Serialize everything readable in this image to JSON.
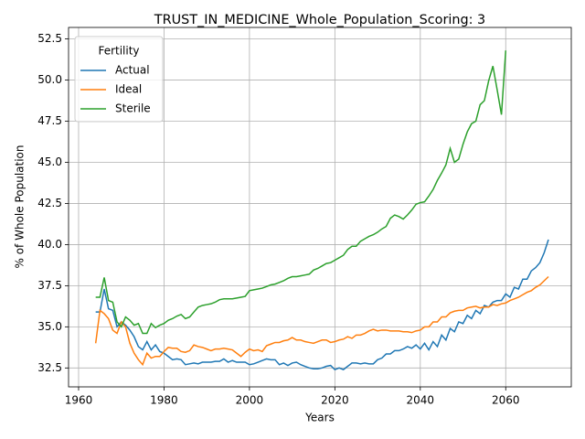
{
  "chart_data": {
    "type": "line",
    "title": "TRUST_IN_MEDICINE_Whole_Population_Scoring: 3",
    "x_label": "Years",
    "y_label": "% of Whole Population",
    "legend_title": "Fertility",
    "legend": "upper left",
    "grid": true,
    "x": [
      1964,
      1965,
      1966,
      1967,
      1968,
      1969,
      1970,
      1971,
      1972,
      1973,
      1974,
      1975,
      1976,
      1977,
      1978,
      1979,
      1980,
      1981,
      1982,
      1983,
      1984,
      1985,
      1986,
      1987,
      1988,
      1989,
      1990,
      1991,
      1992,
      1993,
      1994,
      1995,
      1996,
      1997,
      1998,
      1999,
      2000,
      2001,
      2002,
      2003,
      2004,
      2005,
      2006,
      2007,
      2008,
      2009,
      2010,
      2011,
      2012,
      2013,
      2014,
      2015,
      2016,
      2017,
      2018,
      2019,
      2020,
      2021,
      2022,
      2023,
      2024,
      2025,
      2026,
      2027,
      2028,
      2029,
      2030,
      2031,
      2032,
      2033,
      2034,
      2035,
      2036,
      2037,
      2038,
      2039,
      2040,
      2041,
      2042,
      2043,
      2044,
      2045,
      2046,
      2047,
      2048,
      2049,
      2050,
      2051,
      2052,
      2053,
      2054,
      2055,
      2056,
      2057,
      2058,
      2059,
      2060,
      2061,
      2062,
      2063,
      2064,
      2065,
      2066,
      2067,
      2068,
      2069,
      2070
    ],
    "series": [
      {
        "name": "Actual",
        "color": "#1f77b4",
        "values": [
          35.9,
          35.9,
          37.3,
          36.1,
          36.0,
          35.0,
          35.3,
          35.1,
          34.8,
          34.4,
          33.8,
          33.6,
          34.1,
          33.6,
          33.9,
          33.5,
          33.4,
          33.2,
          33.0,
          33.05,
          33.0,
          32.7,
          32.75,
          32.8,
          32.75,
          32.85,
          32.85,
          32.85,
          32.9,
          32.9,
          33.05,
          32.85,
          32.95,
          32.85,
          32.85,
          32.85,
          32.7,
          32.75,
          32.85,
          32.95,
          33.05,
          33.0,
          33.0,
          32.7,
          32.8,
          32.65,
          32.8,
          32.85,
          32.7,
          32.6,
          32.5,
          32.45,
          32.45,
          32.5,
          32.6,
          32.65,
          32.4,
          32.5,
          32.4,
          32.6,
          32.8,
          32.8,
          32.75,
          32.8,
          32.75,
          32.75,
          33.0,
          33.1,
          33.35,
          33.35,
          33.55,
          33.55,
          33.65,
          33.8,
          33.7,
          33.9,
          33.65,
          34.0,
          33.6,
          34.1,
          33.8,
          34.5,
          34.2,
          34.9,
          34.7,
          35.3,
          35.2,
          35.7,
          35.5,
          36.0,
          35.8,
          36.3,
          36.2,
          36.5,
          36.6,
          36.6,
          37.0,
          36.8,
          37.4,
          37.3,
          37.9,
          37.9,
          38.4,
          38.6,
          38.9,
          39.5,
          40.3
        ]
      },
      {
        "name": "Ideal",
        "color": "#ff7f0e",
        "values": [
          34.0,
          36.0,
          35.8,
          35.5,
          34.8,
          34.6,
          35.3,
          35.0,
          34.0,
          33.4,
          33.0,
          32.7,
          33.4,
          33.1,
          33.2,
          33.2,
          33.5,
          33.75,
          33.7,
          33.7,
          33.5,
          33.45,
          33.55,
          33.9,
          33.8,
          33.75,
          33.65,
          33.55,
          33.65,
          33.65,
          33.7,
          33.65,
          33.6,
          33.4,
          33.2,
          33.45,
          33.65,
          33.55,
          33.6,
          33.5,
          33.85,
          33.95,
          34.05,
          34.05,
          34.15,
          34.2,
          34.35,
          34.2,
          34.2,
          34.1,
          34.05,
          34.0,
          34.1,
          34.2,
          34.2,
          34.05,
          34.1,
          34.2,
          34.25,
          34.4,
          34.3,
          34.5,
          34.5,
          34.6,
          34.75,
          34.85,
          34.75,
          34.8,
          34.8,
          34.75,
          34.75,
          34.75,
          34.7,
          34.7,
          34.65,
          34.75,
          34.8,
          35.0,
          35.0,
          35.3,
          35.3,
          35.6,
          35.6,
          35.85,
          35.95,
          36.0,
          36.0,
          36.15,
          36.2,
          36.25,
          36.15,
          36.2,
          36.2,
          36.35,
          36.3,
          36.4,
          36.45,
          36.6,
          36.7,
          36.8,
          36.95,
          37.1,
          37.2,
          37.4,
          37.55,
          37.8,
          38.05
        ]
      },
      {
        "name": "Sterile",
        "color": "#2ca02c",
        "values": [
          36.8,
          36.8,
          38.0,
          36.6,
          36.5,
          35.3,
          35.0,
          35.6,
          35.4,
          35.1,
          35.2,
          34.6,
          34.6,
          35.2,
          34.95,
          35.1,
          35.2,
          35.4,
          35.5,
          35.65,
          35.75,
          35.5,
          35.6,
          35.9,
          36.2,
          36.3,
          36.35,
          36.4,
          36.5,
          36.65,
          36.7,
          36.7,
          36.7,
          36.75,
          36.8,
          36.85,
          37.2,
          37.25,
          37.3,
          37.35,
          37.45,
          37.55,
          37.6,
          37.7,
          37.8,
          37.95,
          38.05,
          38.05,
          38.1,
          38.15,
          38.2,
          38.45,
          38.55,
          38.7,
          38.85,
          38.9,
          39.05,
          39.2,
          39.35,
          39.7,
          39.9,
          39.9,
          40.2,
          40.35,
          40.5,
          40.6,
          40.75,
          40.95,
          41.1,
          41.6,
          41.8,
          41.7,
          41.55,
          41.8,
          42.1,
          42.45,
          42.55,
          42.6,
          42.95,
          43.35,
          43.9,
          44.35,
          44.85,
          45.85,
          45.0,
          45.2,
          46.1,
          46.85,
          47.35,
          47.5,
          48.5,
          48.75,
          49.95,
          50.85,
          49.4,
          47.9,
          51.8,
          null,
          null,
          null,
          null,
          null,
          null,
          null,
          null,
          null,
          null
        ]
      }
    ],
    "xlim": [
      1957.65,
      2075.35
    ],
    "xticks": [
      1960,
      1980,
      2000,
      2020,
      2040,
      2060
    ],
    "ylim": [
      31.35,
      53.2
    ],
    "yticks": [
      32.5,
      {
        "value": 35,
        "label": "35.0"
      },
      37.5,
      {
        "value": 40,
        "label": "40.0"
      },
      42.5,
      {
        "value": 45,
        "label": "45.0"
      },
      47.5,
      {
        "value": 50,
        "label": "50.0"
      },
      52.5
    ]
  }
}
